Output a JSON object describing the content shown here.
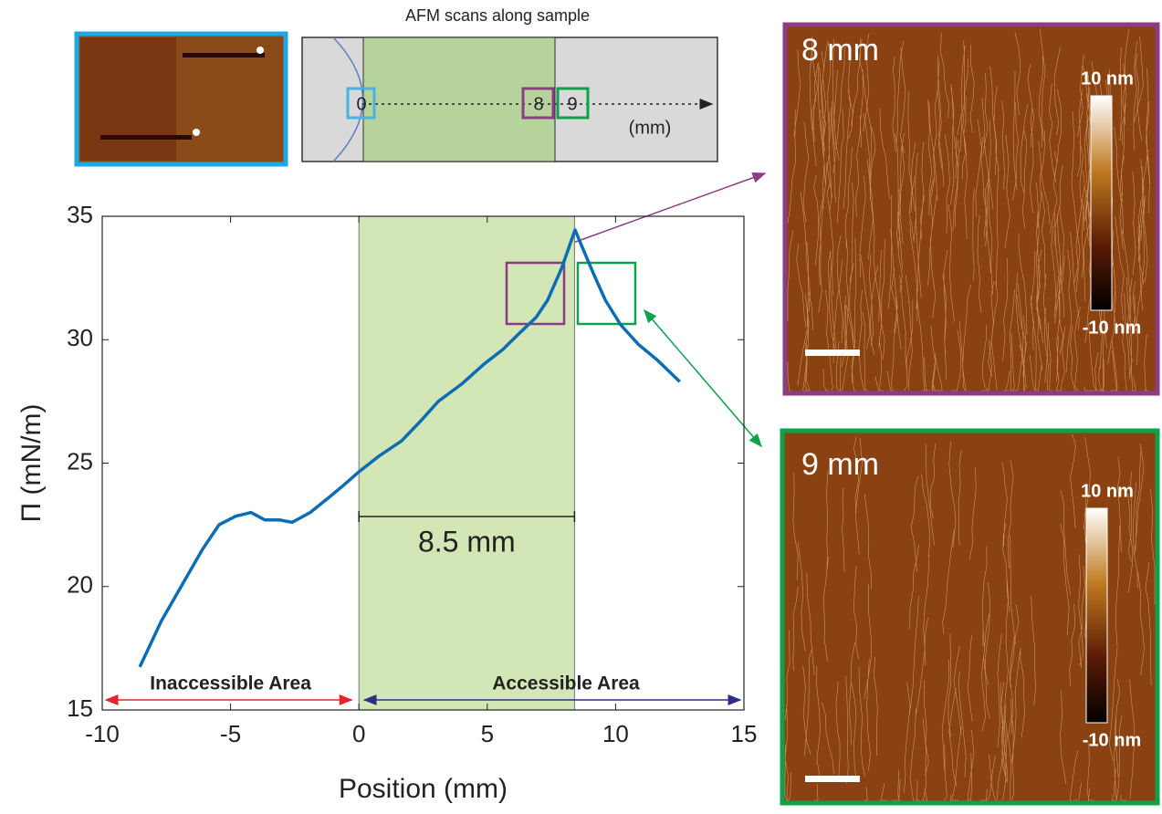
{
  "chart_data": {
    "type": "line",
    "x_label": "Position (mm)",
    "y_label": "Π (mN/m)",
    "xlim": [
      -10,
      15
    ],
    "ylim": [
      15,
      35
    ],
    "xticks": [
      -10,
      -5,
      0,
      5,
      10,
      15
    ],
    "yticks": [
      15,
      20,
      25,
      30,
      35
    ],
    "series": [
      {
        "color": "#0d6db4",
        "x": [
          -8.54,
          -7.7,
          -6.87,
          -6.1,
          -5.45,
          -4.8,
          -4.2,
          -3.67,
          -3.1,
          -2.6,
          -1.9,
          -1.18,
          -0.6,
          0,
          0.8,
          1.66,
          2.4,
          3.09,
          4.0,
          4.86,
          5.6,
          6.29,
          6.9,
          7.35,
          7.9,
          8.42,
          8.8,
          9.13,
          9.6,
          10.2,
          10.9,
          11.6,
          12.5
        ],
        "values": [
          16.74,
          18.6,
          20.1,
          21.5,
          22.5,
          22.85,
          23.0,
          22.7,
          22.7,
          22.6,
          23.0,
          23.6,
          24.1,
          24.65,
          25.3,
          25.9,
          26.7,
          27.5,
          28.2,
          29.0,
          29.6,
          30.3,
          30.9,
          31.6,
          32.9,
          34.45,
          33.5,
          32.7,
          31.6,
          30.6,
          29.8,
          29.2,
          28.3
        ]
      }
    ],
    "shaded_range": [
      0,
      8.4
    ],
    "shaded_color": "#d3e6b5",
    "width_label": "8.5 mm",
    "inaccessible_label": "Inaccessible Area",
    "accessible_label": "Accessible Area"
  },
  "inset": {
    "title": "AFM scans along sample",
    "marks": [
      "0",
      "8",
      "9"
    ],
    "unit": "(mm)"
  },
  "afm_images": [
    {
      "label": "8 mm",
      "scale_max": "10 nm",
      "scale_min": "-10 nm"
    },
    {
      "label": "9 mm",
      "scale_max": "10 nm",
      "scale_min": "-10 nm"
    }
  ]
}
